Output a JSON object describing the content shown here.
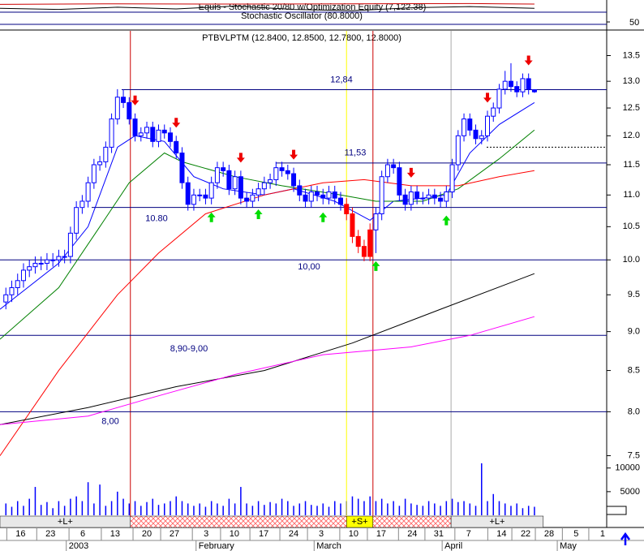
{
  "chart_data": {
    "type": "candlestick",
    "xlim": [
      0,
      103.3
    ],
    "xticks": [
      {
        "value": 3.5,
        "label": "16"
      },
      {
        "value": 8.6,
        "label": "23"
      },
      {
        "value": 14.1,
        "label": "6"
      },
      {
        "value": 19.6,
        "label": "13"
      },
      {
        "value": 25,
        "label": "20"
      },
      {
        "value": 29.7,
        "label": "27"
      },
      {
        "value": 35.1,
        "label": "3"
      },
      {
        "value": 39.9,
        "label": "10"
      },
      {
        "value": 44.9,
        "label": "17"
      },
      {
        "value": 50,
        "label": "24"
      },
      {
        "value": 54.7,
        "label": "3"
      },
      {
        "value": 60.2,
        "label": "10"
      },
      {
        "value": 64.9,
        "label": "17"
      },
      {
        "value": 70.2,
        "label": "24"
      },
      {
        "value": 74.7,
        "label": "31"
      },
      {
        "value": 79.8,
        "label": "7"
      },
      {
        "value": 85.4,
        "label": "14"
      },
      {
        "value": 89.5,
        "label": "22"
      },
      {
        "value": 93.5,
        "label": "28"
      },
      {
        "value": 98.1,
        "label": "5"
      },
      {
        "value": 102.6,
        "label": "1"
      }
    ],
    "months": [
      {
        "value": 11.7,
        "label": "2003"
      },
      {
        "value": 33.8,
        "label": "February"
      },
      {
        "value": 53.9,
        "label": "March"
      },
      {
        "value": 75.7,
        "label": "April"
      },
      {
        "value": 95.3,
        "label": "May"
      }
    ],
    "stochastic": {
      "title": "Equis - Stochastic 20/80  w/Optimization Equity (7,122.38)",
      "subtitle": "Stochastic Oscillator (80.8000)",
      "ylim": [
        40,
        83
      ],
      "yticks": [
        50
      ],
      "series": [
        {
          "color": "#cc0000",
          "x": [
            0,
            20,
            40,
            60,
            80,
            91
          ],
          "values": [
            81,
            82,
            81.5,
            82,
            82.5,
            81.5
          ]
        },
        {
          "color": "#000000",
          "x": [
            0,
            10,
            20,
            30,
            40,
            50,
            60,
            70,
            80,
            91
          ],
          "values": [
            74,
            72,
            76,
            73,
            78,
            72,
            70,
            75,
            77,
            74
          ]
        }
      ]
    },
    "price": {
      "title": "PTBVLPTM (12.8400, 12.8500, 12.7800, 12.8000)",
      "log_scale": true,
      "ylim": [
        7.25,
        14.0
      ],
      "yticks": [
        {
          "value": 7.5,
          "label": "7.5"
        },
        {
          "value": 8,
          "label": "8.0"
        },
        {
          "value": 8.5,
          "label": "8.5"
        },
        {
          "value": 9,
          "label": "9.0"
        },
        {
          "value": 9.5,
          "label": "9.5"
        },
        {
          "value": 10,
          "label": "10.0"
        },
        {
          "value": 10.5,
          "label": "10.5"
        },
        {
          "value": 11,
          "label": "11.0"
        },
        {
          "value": 11.5,
          "label": "11.5"
        },
        {
          "value": 12,
          "label": "12.0"
        },
        {
          "value": 12.5,
          "label": "12.5"
        },
        {
          "value": 13,
          "label": "13.0"
        },
        13.5
      ],
      "up_color": "#ffffff",
      "down_color": "#0000ff",
      "highlight": {
        "from": 59,
        "to": 63,
        "color": "#ff0000"
      },
      "x": [
        1,
        2,
        3,
        4,
        5,
        6,
        7,
        8,
        9,
        10,
        11,
        12,
        13,
        14,
        15,
        16,
        17,
        18,
        19,
        20,
        21,
        22,
        23,
        24,
        25,
        26,
        27,
        28,
        29,
        30,
        31,
        32,
        33,
        34,
        35,
        36,
        37,
        38,
        39,
        40,
        41,
        42,
        43,
        44,
        45,
        46,
        47,
        48,
        49,
        50,
        51,
        52,
        53,
        54,
        55,
        56,
        57,
        58,
        59,
        60,
        61,
        62,
        63,
        64,
        65,
        66,
        67,
        68,
        69,
        70,
        71,
        72,
        73,
        74,
        75,
        76,
        77,
        78,
        79,
        80,
        81,
        82,
        83,
        84,
        85,
        86,
        87,
        88,
        89,
        90,
        91
      ],
      "ohlc": [
        [
          9.4,
          9.6,
          9.3,
          9.5
        ],
        [
          9.5,
          9.7,
          9.4,
          9.6
        ],
        [
          9.6,
          9.8,
          9.5,
          9.7
        ],
        [
          9.7,
          9.95,
          9.6,
          9.85
        ],
        [
          9.85,
          10.0,
          9.75,
          9.9
        ],
        [
          9.9,
          10.05,
          9.8,
          9.95
        ],
        [
          9.95,
          10.05,
          9.85,
          9.95
        ],
        [
          9.95,
          10.1,
          9.85,
          10.0
        ],
        [
          10.0,
          10.1,
          9.9,
          10.0
        ],
        [
          10.0,
          10.15,
          9.9,
          10.05
        ],
        [
          10.05,
          10.15,
          9.95,
          10.05
        ],
        [
          10.05,
          10.5,
          9.95,
          10.4
        ],
        [
          10.4,
          10.9,
          10.3,
          10.8
        ],
        [
          10.8,
          11.0,
          10.7,
          10.9
        ],
        [
          10.9,
          11.3,
          10.8,
          11.2
        ],
        [
          11.2,
          11.6,
          11.1,
          11.5
        ],
        [
          11.5,
          11.65,
          11.4,
          11.55
        ],
        [
          11.55,
          11.9,
          11.45,
          11.8
        ],
        [
          11.8,
          12.4,
          11.7,
          12.3
        ],
        [
          12.3,
          12.85,
          12.2,
          12.7
        ],
        [
          12.7,
          12.85,
          12.5,
          12.6
        ],
        [
          12.6,
          12.7,
          12.2,
          12.3
        ],
        [
          12.3,
          12.4,
          11.9,
          12.0
        ],
        [
          12.0,
          12.15,
          11.9,
          12.05
        ],
        [
          12.05,
          12.25,
          11.95,
          12.15
        ],
        [
          12.15,
          12.25,
          11.8,
          11.9
        ],
        [
          11.9,
          12.2,
          11.8,
          12.1
        ],
        [
          12.1,
          12.2,
          11.95,
          12.05
        ],
        [
          12.05,
          12.15,
          11.8,
          11.9
        ],
        [
          11.9,
          12.0,
          11.6,
          11.7
        ],
        [
          11.7,
          11.8,
          11.1,
          11.2
        ],
        [
          11.2,
          11.3,
          10.75,
          10.85
        ],
        [
          10.85,
          11.1,
          10.75,
          11.0
        ],
        [
          11.0,
          11.1,
          10.9,
          11.0
        ],
        [
          11.0,
          11.1,
          10.85,
          10.95
        ],
        [
          10.95,
          11.3,
          10.85,
          11.2
        ],
        [
          11.2,
          11.55,
          11.1,
          11.45
        ],
        [
          11.45,
          11.55,
          11.3,
          11.4
        ],
        [
          11.4,
          11.5,
          11.0,
          11.1
        ],
        [
          11.1,
          11.4,
          11.0,
          11.3
        ],
        [
          11.3,
          11.4,
          10.85,
          10.95
        ],
        [
          10.95,
          11.05,
          10.8,
          10.9
        ],
        [
          10.9,
          11.1,
          10.8,
          11.0
        ],
        [
          11.0,
          11.2,
          10.9,
          11.1
        ],
        [
          11.1,
          11.3,
          11.0,
          11.2
        ],
        [
          11.2,
          11.35,
          11.1,
          11.25
        ],
        [
          11.25,
          11.55,
          11.15,
          11.45
        ],
        [
          11.45,
          11.55,
          11.3,
          11.4
        ],
        [
          11.4,
          11.5,
          11.25,
          11.35
        ],
        [
          11.35,
          11.45,
          11.05,
          11.15
        ],
        [
          11.15,
          11.25,
          10.9,
          11.0
        ],
        [
          11.0,
          11.1,
          10.8,
          10.9
        ],
        [
          10.9,
          11.15,
          10.8,
          11.05
        ],
        [
          11.05,
          11.15,
          10.9,
          11.0
        ],
        [
          11.0,
          11.1,
          10.85,
          10.95
        ],
        [
          10.95,
          11.15,
          10.85,
          11.05
        ],
        [
          11.05,
          11.15,
          10.85,
          10.95
        ],
        [
          10.95,
          11.05,
          10.75,
          10.85
        ],
        [
          10.85,
          10.95,
          10.6,
          10.7
        ],
        [
          10.7,
          10.8,
          10.25,
          10.35
        ],
        [
          10.35,
          10.45,
          10.1,
          10.2
        ],
        [
          10.2,
          10.3,
          9.98,
          10.05
        ],
        [
          10.05,
          10.55,
          9.98,
          10.45
        ],
        [
          10.45,
          10.8,
          10.1,
          10.7
        ],
        [
          10.7,
          11.4,
          10.6,
          11.3
        ],
        [
          11.3,
          11.6,
          11.2,
          11.5
        ],
        [
          11.5,
          11.6,
          11.35,
          11.45
        ],
        [
          11.45,
          11.55,
          10.9,
          11.0
        ],
        [
          11.0,
          11.1,
          10.75,
          10.85
        ],
        [
          10.85,
          11.15,
          10.75,
          11.05
        ],
        [
          11.05,
          11.15,
          10.85,
          10.95
        ],
        [
          10.95,
          11.05,
          10.85,
          10.95
        ],
        [
          10.95,
          11.1,
          10.85,
          11.0
        ],
        [
          11.0,
          11.1,
          10.85,
          10.95
        ],
        [
          10.95,
          11.05,
          10.8,
          10.9
        ],
        [
          10.9,
          11.15,
          10.8,
          11.05
        ],
        [
          11.05,
          11.6,
          10.95,
          11.5
        ],
        [
          11.5,
          12.1,
          11.4,
          12.0
        ],
        [
          12.0,
          12.4,
          11.9,
          12.3
        ],
        [
          12.3,
          12.4,
          12.0,
          12.1
        ],
        [
          12.1,
          12.2,
          11.85,
          11.95
        ],
        [
          11.95,
          12.1,
          11.85,
          12.0
        ],
        [
          12.0,
          12.45,
          11.9,
          12.35
        ],
        [
          12.35,
          12.6,
          12.25,
          12.5
        ],
        [
          12.5,
          12.95,
          12.4,
          12.85
        ],
        [
          12.85,
          13.2,
          12.75,
          13.0
        ],
        [
          13.0,
          13.35,
          12.8,
          12.9
        ],
        [
          12.9,
          13.0,
          12.7,
          12.8
        ],
        [
          12.8,
          13.15,
          12.7,
          13.05
        ],
        [
          13.05,
          13.15,
          12.75,
          12.85
        ],
        [
          12.84,
          12.85,
          12.78,
          12.8
        ]
      ],
      "averages": [
        {
          "color": "#0000ff",
          "x": [
            0,
            10,
            15,
            20,
            23,
            28,
            33,
            38,
            45,
            50,
            57,
            63,
            67,
            72,
            76,
            80,
            85,
            91
          ],
          "values": [
            9.3,
            9.95,
            10.5,
            11.8,
            12.0,
            11.9,
            11.3,
            11.1,
            11.0,
            11.1,
            10.9,
            10.6,
            10.9,
            10.95,
            11.0,
            11.7,
            12.2,
            12.6
          ]
        },
        {
          "color": "#008000",
          "x": [
            0,
            10,
            17,
            22,
            28,
            31,
            40,
            48,
            58,
            64,
            72,
            78,
            85,
            91
          ],
          "values": [
            8.9,
            9.6,
            10.5,
            11.2,
            11.7,
            11.55,
            11.3,
            11.15,
            11.0,
            10.9,
            10.9,
            11.1,
            11.6,
            12.1
          ]
        },
        {
          "color": "#ff0000",
          "x": [
            0,
            10,
            20,
            27,
            35,
            45,
            55,
            62,
            70,
            78,
            85,
            91
          ],
          "values": [
            7.5,
            8.5,
            9.5,
            10.1,
            10.7,
            11.0,
            11.2,
            11.25,
            11.15,
            11.15,
            11.3,
            11.4
          ]
        },
        {
          "color": "#000000",
          "x": [
            0,
            15,
            30,
            45,
            60,
            75,
            91
          ],
          "values": [
            7.85,
            8.05,
            8.3,
            8.5,
            8.85,
            9.3,
            9.8
          ]
        },
        {
          "color": "#ff00ff",
          "x": [
            0,
            15,
            25,
            40,
            55,
            70,
            80,
            91
          ],
          "values": [
            7.85,
            7.95,
            8.15,
            8.45,
            8.7,
            8.8,
            8.95,
            9.2
          ]
        }
      ],
      "levels": [
        {
          "value": 12.84,
          "label": "12,84"
        },
        {
          "value": 11.53,
          "label": "11,53"
        },
        {
          "value": 10.8,
          "label": "10.80"
        },
        {
          "value": 10.0,
          "label": "10,00"
        },
        {
          "value": 8.95,
          "label": "8,90-9,00"
        },
        {
          "value": 8.0,
          "label": "8,00"
        }
      ],
      "dashed_level": 11.8,
      "vlines": [
        {
          "x": 22.2,
          "color": "#cc0000"
        },
        {
          "x": 59,
          "color": "#ffff00"
        },
        {
          "x": 63.5,
          "color": "#cc0000"
        },
        {
          "x": 76.8,
          "color": "#aaaaaa"
        }
      ],
      "sell_at": [
        23,
        30,
        41,
        50,
        70,
        83,
        90
      ],
      "buy_at": [
        36,
        44,
        55,
        64,
        76
      ]
    },
    "volume": {
      "color": "#0000ff",
      "ylim": [
        0,
        11500
      ],
      "yticks": [
        5000,
        10000
      ],
      "values": [
        2500,
        1800,
        3000,
        2000,
        3500,
        6000,
        2200,
        2800,
        1500,
        3000,
        2000,
        3500,
        4000,
        3000,
        7000,
        2500,
        6500,
        2000,
        3000,
        5000,
        3500,
        2500,
        3000,
        2000,
        2800,
        3500,
        2200,
        2500,
        3000,
        4000,
        3000,
        2500,
        2000,
        2500,
        1800,
        3000,
        2500,
        2000,
        3500,
        2500,
        6000,
        2500,
        2000,
        3000,
        2200,
        2800,
        2500,
        3500,
        3000,
        2000,
        2500,
        3000,
        2200,
        2000,
        2500,
        1800,
        3000,
        2500,
        3000,
        4000,
        3500,
        3000,
        4000,
        3000,
        3500,
        2500,
        3000,
        2000,
        3500,
        2500,
        2200,
        2000,
        3000,
        2500,
        2000,
        3000,
        3500,
        2800,
        3000,
        2500,
        2000,
        11000,
        3000,
        4500,
        3000,
        2500,
        2000,
        2500,
        1500,
        2000,
        1800
      ]
    },
    "zones": [
      {
        "from": 0,
        "to": 22.2,
        "label": "+L+"
      },
      {
        "from": 22.2,
        "to": 59,
        "hatch": true
      },
      {
        "from": 59,
        "to": 63.5,
        "label": "+S+",
        "color": "#ffff00"
      },
      {
        "from": 63.5,
        "to": 76.8,
        "hatch": true
      },
      {
        "from": 76.8,
        "to": 92.5,
        "label": "+L+"
      }
    ]
  }
}
